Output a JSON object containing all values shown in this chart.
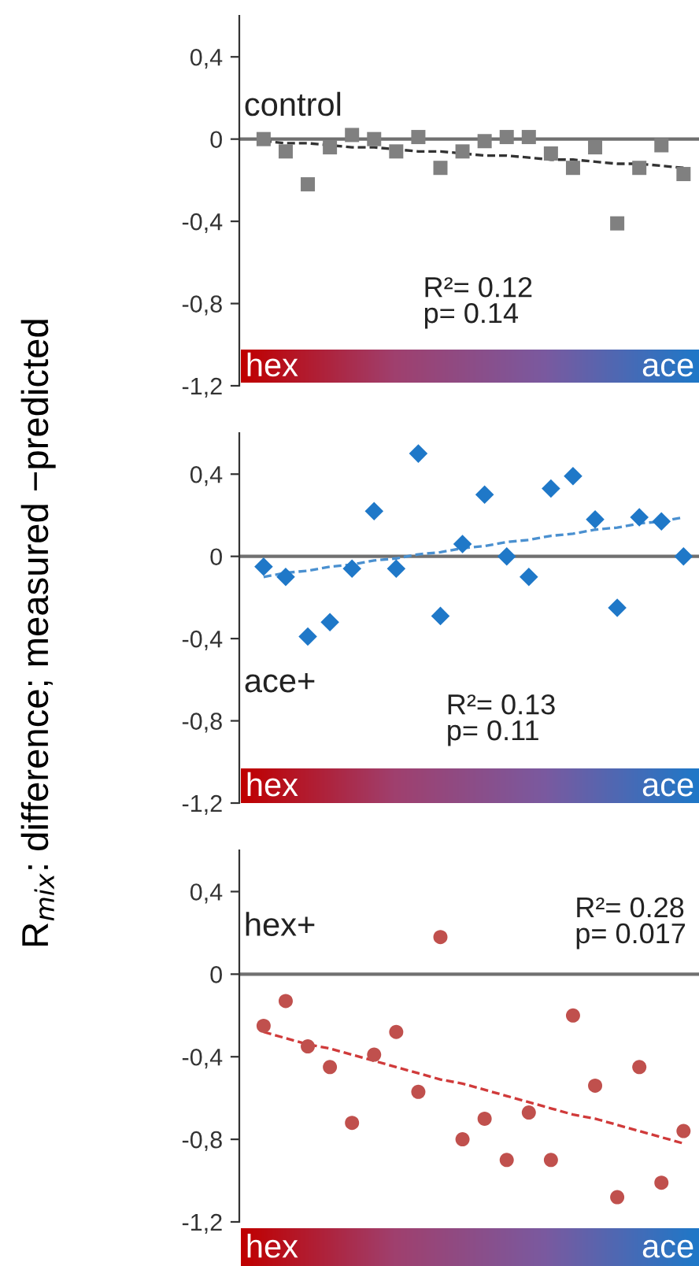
{
  "chart_data": [
    {
      "type": "scatter",
      "categories": [
        null,
        null,
        null,
        null,
        null,
        null,
        null,
        null,
        null,
        null,
        null,
        null,
        null,
        null,
        null,
        null,
        null,
        null,
        null,
        null
      ],
      "ylabel": "R$_{mix}$: difference; measured −predicted",
      "series": [
        {
          "color": "#808080",
          "marker": "square",
          "values": [
            0,
            -0.06,
            -0.22,
            -0.04,
            0.02,
            0,
            -0.06,
            0.01,
            -0.14,
            -0.06,
            -0.01,
            0.01,
            0.01,
            -0.07,
            -0.14,
            -0.04,
            -0.41,
            -0.14,
            -0.03,
            -0.17
          ]
        },
        {
          "type": "line",
          "color": "#333333",
          "line_style": "dashed",
          "marker": "none",
          "values": [
            -0.01,
            -0.02,
            -0.02,
            -0.03,
            -0.04,
            -0.04,
            -0.05,
            -0.06,
            -0.06,
            -0.07,
            -0.08,
            -0.08,
            -0.09,
            -0.1,
            -0.1,
            -0.11,
            -0.12,
            -0.12,
            -0.13,
            -0.14
          ]
        }
      ],
      "ylim": [
        -1.2,
        0.6
      ],
      "yticks": [
        {
          "value": 0.4,
          "label": "0,4"
        },
        0,
        {
          "value": -0.4,
          "label": "-0,4"
        },
        {
          "value": -0.8,
          "label": "-0,8"
        },
        {
          "value": -1.2,
          "label": "-1,2"
        }
      ],
      "ref_lines": [
        {
          "axis": "y",
          "value": 0,
          "color": "#707070"
        }
      ],
      "grid": false,
      "legend": false,
      "tick_labels": "y",
      "annotations": [
        "control",
        "R²= 0.12",
        "p= 0.14",
        "hex",
        "ace"
      ]
    },
    {
      "type": "scatter",
      "categories": [
        null,
        null,
        null,
        null,
        null,
        null,
        null,
        null,
        null,
        null,
        null,
        null,
        null,
        null,
        null,
        null,
        null,
        null,
        null,
        null
      ],
      "series": [
        {
          "color": "#1f78c8",
          "marker": "diamond",
          "values": [
            -0.05,
            -0.1,
            -0.39,
            -0.32,
            -0.06,
            0.22,
            -0.06,
            0.5,
            -0.29,
            0.06,
            0.3,
            0,
            -0.1,
            0.33,
            0.39,
            0.18,
            -0.25,
            0.19,
            0.17,
            0
          ]
        },
        {
          "type": "line",
          "color": "#4a90d0",
          "line_style": "dashed",
          "marker": "none",
          "values": [
            -0.1,
            -0.08,
            -0.07,
            -0.05,
            -0.04,
            -0.02,
            -0.01,
            0.01,
            0.02,
            0.04,
            0.05,
            0.07,
            0.08,
            0.1,
            0.11,
            0.13,
            0.14,
            0.16,
            0.17,
            0.19
          ]
        }
      ],
      "ylim": [
        -1.2,
        0.6
      ],
      "yticks": [
        {
          "value": 0.4,
          "label": "0,4"
        },
        0,
        {
          "value": -0.4,
          "label": "-0,4"
        },
        {
          "value": -0.8,
          "label": "-0,8"
        },
        {
          "value": -1.2,
          "label": "-1,2"
        }
      ],
      "ref_lines": [
        {
          "axis": "y",
          "value": 0,
          "color": "#707070"
        }
      ],
      "grid": false,
      "legend": false,
      "tick_labels": "y",
      "annotations": [
        "ace+",
        "R²= 0.13",
        "p= 0.11",
        "hex",
        "ace"
      ]
    },
    {
      "type": "scatter",
      "categories": [
        null,
        null,
        null,
        null,
        null,
        null,
        null,
        null,
        null,
        null,
        null,
        null,
        null,
        null,
        null,
        null,
        null,
        null,
        null,
        null
      ],
      "series": [
        {
          "color": "#c0504d",
          "marker": "circle",
          "values": [
            -0.25,
            -0.13,
            -0.35,
            -0.45,
            -0.72,
            -0.39,
            -0.28,
            -0.57,
            0.18,
            -0.8,
            -0.7,
            -0.9,
            -0.67,
            -0.9,
            -0.2,
            -0.54,
            -1.08,
            -0.45,
            -1.01,
            -0.76
          ]
        },
        {
          "type": "line",
          "color": "#d03a3a",
          "line_style": "dashed",
          "marker": "none",
          "values": [
            -0.28,
            -0.31,
            -0.34,
            -0.36,
            -0.39,
            -0.42,
            -0.45,
            -0.48,
            -0.51,
            -0.53,
            -0.56,
            -0.59,
            -0.62,
            -0.65,
            -0.68,
            -0.7,
            -0.73,
            -0.76,
            -0.79,
            -0.82
          ]
        }
      ],
      "ylim": [
        -1.2,
        0.6
      ],
      "yticks": [
        {
          "value": 0.4,
          "label": "0,4"
        },
        0,
        {
          "value": -0.4,
          "label": "-0,4"
        },
        {
          "value": -0.8,
          "label": "-0,8"
        },
        {
          "value": -1.2,
          "label": "-1,2"
        }
      ],
      "ref_lines": [
        {
          "axis": "y",
          "value": 0,
          "color": "#707070"
        }
      ],
      "grid": false,
      "legend": false,
      "tick_labels": "y",
      "annotations": [
        "hex+",
        "R²= 0.28",
        "p= 0.017",
        "hex",
        "ace"
      ]
    }
  ]
}
